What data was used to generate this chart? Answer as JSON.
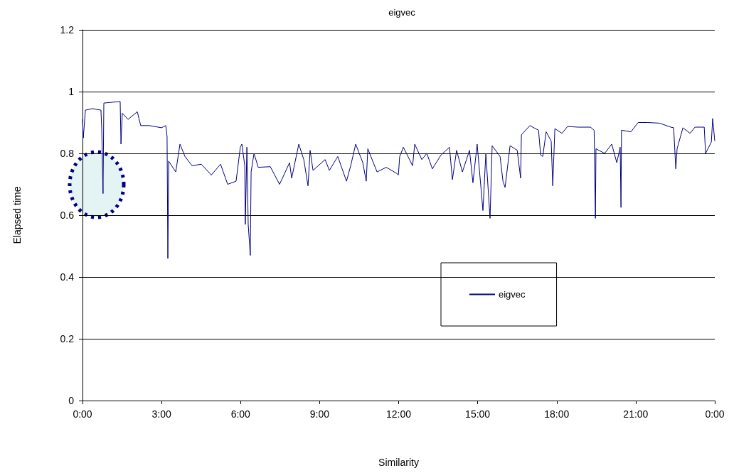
{
  "chart_data": {
    "type": "line",
    "title": "eigvec",
    "xlabel": "Similarity",
    "ylabel": "Elapsed time",
    "xlim": [
      0,
      24
    ],
    "xticks": [
      {
        "value": 0,
        "label": "0:00"
      },
      {
        "value": 3,
        "label": "3:00"
      },
      {
        "value": 6,
        "label": "6:00"
      },
      {
        "value": 9,
        "label": "9:00"
      },
      {
        "value": 12,
        "label": "12:00"
      },
      {
        "value": 15,
        "label": "15:00"
      },
      {
        "value": 18,
        "label": "18:00"
      },
      {
        "value": 21,
        "label": "21:00"
      },
      {
        "value": 24,
        "label": "0:00"
      }
    ],
    "ylim": [
      0,
      1.2
    ],
    "yticks": [
      0,
      0.2,
      0.4,
      0.6,
      0.8,
      1,
      1.2
    ],
    "grid": "y",
    "legend": "right",
    "marker": "none",
    "line_style": "solid",
    "series": [
      {
        "name": "eigvec",
        "color": "#000080",
        "x": [
          0,
          0.03,
          0.11,
          0.38,
          0.7,
          0.73,
          0.78,
          0.81,
          1.43,
          1.46,
          1.51,
          1.73,
          2.08,
          2.21,
          2.54,
          3,
          3.16,
          3.21,
          3.24,
          3.27,
          3.54,
          3.7,
          3.89,
          4.16,
          4.51,
          4.89,
          5.24,
          5.51,
          5.83,
          5.99,
          6.05,
          6.16,
          6.18,
          6.24,
          6.29,
          6.37,
          6.4,
          6.51,
          6.67,
          7.13,
          7.48,
          7.86,
          7.94,
          8.21,
          8.4,
          8.56,
          8.64,
          8.75,
          9.21,
          9.37,
          9.69,
          10.02,
          10.18,
          10.37,
          10.64,
          10.77,
          10.83,
          11.18,
          11.53,
          11.93,
          11.99,
          12.04,
          12.18,
          12.53,
          12.61,
          12.88,
          13.07,
          13.28,
          13.61,
          13.93,
          14.04,
          14.2,
          14.42,
          14.69,
          14.82,
          14.98,
          15.2,
          15.31,
          15.47,
          15.55,
          15.85,
          15.96,
          16.04,
          16.23,
          16.5,
          16.63,
          16.66,
          16.98,
          17.31,
          17.39,
          17.47,
          17.6,
          17.79,
          17.85,
          17.93,
          18.2,
          18.41,
          18.82,
          19.28,
          19.42,
          19.47,
          19.49,
          19.82,
          20.09,
          20.28,
          20.41,
          20.44,
          20.46,
          20.82,
          21.09,
          21.44,
          21.9,
          22.33,
          22.44,
          22.52,
          22.57,
          22.79,
          23.06,
          23.25,
          23.6,
          23.65,
          23.87,
          23.92,
          24
        ],
        "values": [
          0.91,
          0.85,
          0.94,
          0.945,
          0.94,
          0.88,
          0.67,
          0.963,
          0.968,
          0.83,
          0.93,
          0.91,
          0.935,
          0.89,
          0.89,
          0.883,
          0.89,
          0.855,
          0.46,
          0.775,
          0.74,
          0.83,
          0.79,
          0.76,
          0.765,
          0.73,
          0.765,
          0.7,
          0.71,
          0.82,
          0.83,
          0.76,
          0.57,
          0.82,
          0.57,
          0.47,
          0.74,
          0.8,
          0.755,
          0.757,
          0.7,
          0.77,
          0.72,
          0.83,
          0.78,
          0.695,
          0.81,
          0.745,
          0.78,
          0.745,
          0.79,
          0.71,
          0.76,
          0.83,
          0.77,
          0.71,
          0.815,
          0.74,
          0.755,
          0.735,
          0.73,
          0.79,
          0.82,
          0.76,
          0.83,
          0.78,
          0.8,
          0.75,
          0.795,
          0.82,
          0.715,
          0.81,
          0.74,
          0.81,
          0.705,
          0.83,
          0.615,
          0.8,
          0.59,
          0.825,
          0.79,
          0.71,
          0.69,
          0.825,
          0.81,
          0.72,
          0.86,
          0.89,
          0.875,
          0.795,
          0.79,
          0.87,
          0.84,
          0.695,
          0.88,
          0.865,
          0.887,
          0.885,
          0.885,
          0.875,
          0.59,
          0.815,
          0.8,
          0.83,
          0.77,
          0.82,
          0.625,
          0.875,
          0.87,
          0.9,
          0.9,
          0.898,
          0.885,
          0.883,
          0.75,
          0.815,
          0.883,
          0.865,
          0.885,
          0.885,
          0.8,
          0.837,
          0.913,
          0.84
        ]
      }
    ]
  }
}
